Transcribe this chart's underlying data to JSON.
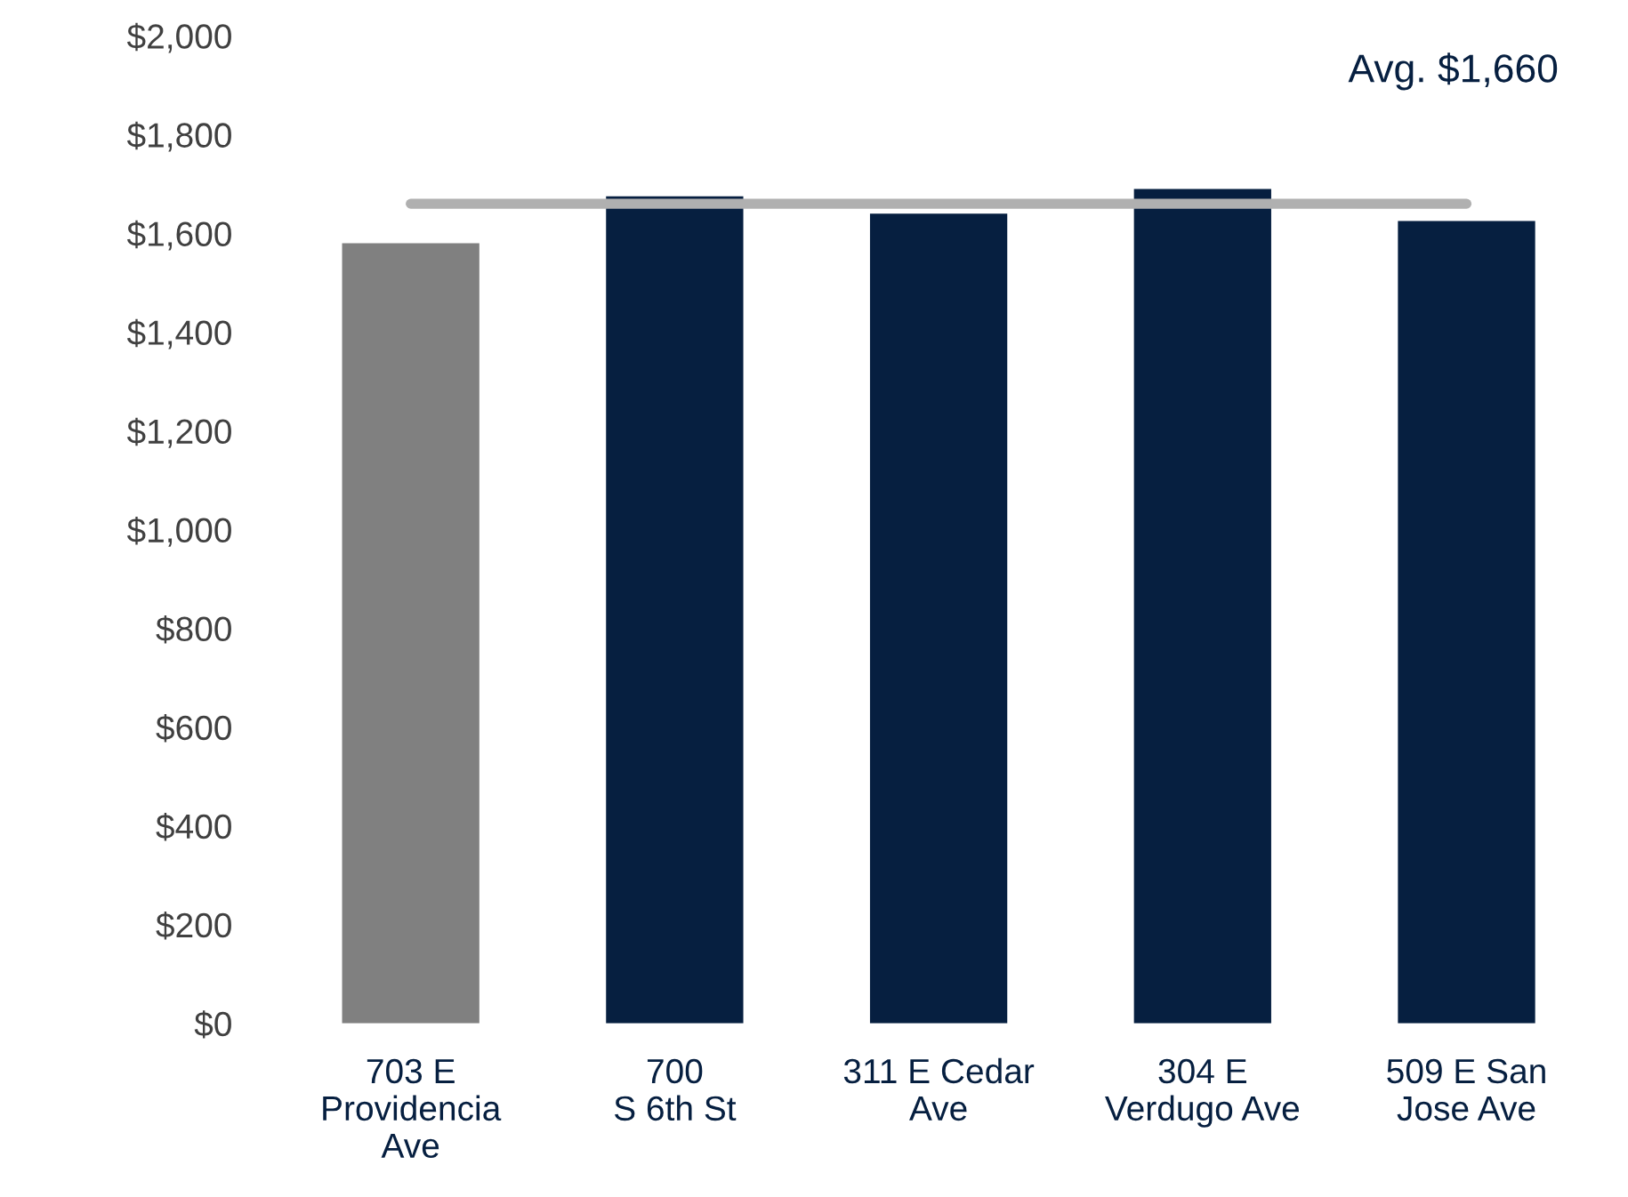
{
  "chart_data": {
    "type": "bar",
    "categories": [
      "703 E\nProvidencia\nAve",
      "700\nS 6th St",
      "311 E Cedar\nAve",
      "304 E\nVerdugo Ave",
      "509 E San\nJose Ave"
    ],
    "values": [
      1580,
      1675,
      1640,
      1690,
      1625
    ],
    "colors": [
      "#808080",
      "#061f40",
      "#061f40",
      "#061f40",
      "#061f40"
    ],
    "ylim": [
      0,
      2000
    ],
    "yticks": [
      {
        "value": 0,
        "label": "$0"
      },
      {
        "value": 200,
        "label": "$200"
      },
      {
        "value": 400,
        "label": "$400"
      },
      {
        "value": 600,
        "label": "$600"
      },
      {
        "value": 800,
        "label": "$800"
      },
      {
        "value": 1000,
        "label": "$1,000"
      },
      {
        "value": 1200,
        "label": "$1,200"
      },
      {
        "value": 1400,
        "label": "$1,400"
      },
      {
        "value": 1600,
        "label": "$1,600"
      },
      {
        "value": 1800,
        "label": "$1,800"
      },
      {
        "value": 2000,
        "label": "$2,000"
      }
    ],
    "ref_lines": [
      {
        "axis": "y",
        "value": 1660,
        "label": "Avg. $1,660",
        "color": "#b0b0b0"
      }
    ],
    "grid": false,
    "legend": false
  }
}
